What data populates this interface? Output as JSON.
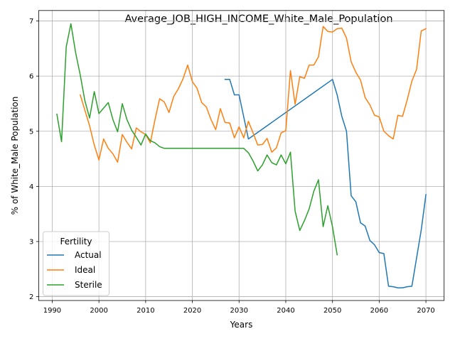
{
  "chart_data": {
    "type": "line",
    "title": "Average_JOB_HIGH_INCOME_White_Male_Population",
    "xlabel": "Years",
    "ylabel": "% of White_Male Population",
    "xlim": [
      1987.1,
      2073.9
    ],
    "ylim": [
      1.93,
      7.19
    ],
    "xticks": [
      1990,
      2000,
      2010,
      2020,
      2030,
      2040,
      2050,
      2060,
      2070
    ],
    "yticks": [
      2,
      3,
      4,
      5,
      6,
      7
    ],
    "grid": true,
    "legend": {
      "title": "Fertility",
      "placement": "lower-left"
    },
    "series": [
      {
        "name": "Actual",
        "color": "#1f77b4",
        "points": [
          [
            2027,
            5.94
          ],
          [
            2028,
            5.94
          ],
          [
            2029,
            5.66
          ],
          [
            2030,
            5.66
          ],
          [
            2032,
            4.86
          ],
          [
            2050,
            5.94
          ],
          [
            2051,
            5.66
          ],
          [
            2052,
            5.27
          ],
          [
            2053,
            5.0
          ],
          [
            2054,
            3.83
          ],
          [
            2055,
            3.72
          ],
          [
            2056,
            3.34
          ],
          [
            2057,
            3.28
          ],
          [
            2058,
            3.02
          ],
          [
            2059,
            2.94
          ],
          [
            2060,
            2.8
          ],
          [
            2061,
            2.78
          ],
          [
            2062,
            2.19
          ],
          [
            2063,
            2.18
          ],
          [
            2064,
            2.16
          ],
          [
            2065,
            2.16
          ],
          [
            2066,
            2.18
          ],
          [
            2067,
            2.19
          ],
          [
            2068,
            2.7
          ],
          [
            2069,
            3.21
          ],
          [
            2070,
            3.85
          ]
        ]
      },
      {
        "name": "Ideal",
        "color": "#ff7f0e",
        "points": [
          [
            1996,
            5.66
          ],
          [
            1997,
            5.38
          ],
          [
            1998,
            5.1
          ],
          [
            1999,
            4.75
          ],
          [
            2000,
            4.48
          ],
          [
            2001,
            4.86
          ],
          [
            2002,
            4.69
          ],
          [
            2003,
            4.59
          ],
          [
            2004,
            4.44
          ],
          [
            2005,
            4.94
          ],
          [
            2006,
            4.8
          ],
          [
            2007,
            4.68
          ],
          [
            2008,
            5.06
          ],
          [
            2009,
            4.99
          ],
          [
            2010,
            4.94
          ],
          [
            2011,
            4.79
          ],
          [
            2012,
            5.21
          ],
          [
            2013,
            5.59
          ],
          [
            2014,
            5.53
          ],
          [
            2015,
            5.34
          ],
          [
            2016,
            5.63
          ],
          [
            2017,
            5.77
          ],
          [
            2018,
            5.95
          ],
          [
            2019,
            6.2
          ],
          [
            2020,
            5.9
          ],
          [
            2021,
            5.78
          ],
          [
            2022,
            5.52
          ],
          [
            2023,
            5.44
          ],
          [
            2024,
            5.21
          ],
          [
            2025,
            5.03
          ],
          [
            2026,
            5.41
          ],
          [
            2027,
            5.16
          ],
          [
            2028,
            5.15
          ],
          [
            2029,
            4.88
          ],
          [
            2030,
            5.08
          ],
          [
            2031,
            4.88
          ],
          [
            2032,
            5.18
          ],
          [
            2033,
            4.97
          ],
          [
            2034,
            4.75
          ],
          [
            2035,
            4.76
          ],
          [
            2036,
            4.87
          ],
          [
            2037,
            4.62
          ],
          [
            2038,
            4.7
          ],
          [
            2039,
            4.97
          ],
          [
            2040,
            5.01
          ],
          [
            2041,
            6.1
          ],
          [
            2042,
            5.49
          ],
          [
            2043,
            5.99
          ],
          [
            2044,
            5.96
          ],
          [
            2045,
            6.2
          ],
          [
            2046,
            6.2
          ],
          [
            2047,
            6.35
          ],
          [
            2048,
            6.9
          ],
          [
            2049,
            6.81
          ],
          [
            2050,
            6.8
          ],
          [
            2051,
            6.86
          ],
          [
            2052,
            6.87
          ],
          [
            2053,
            6.69
          ],
          [
            2054,
            6.26
          ],
          [
            2055,
            6.07
          ],
          [
            2056,
            5.93
          ],
          [
            2057,
            5.61
          ],
          [
            2058,
            5.48
          ],
          [
            2059,
            5.29
          ],
          [
            2060,
            5.26
          ],
          [
            2061,
            5.0
          ],
          [
            2062,
            4.92
          ],
          [
            2063,
            4.86
          ],
          [
            2064,
            5.29
          ],
          [
            2065,
            5.27
          ],
          [
            2066,
            5.57
          ],
          [
            2067,
            5.91
          ],
          [
            2068,
            6.12
          ],
          [
            2069,
            6.82
          ],
          [
            2070,
            6.86
          ]
        ]
      },
      {
        "name": "Sterile",
        "color": "#2ca02c",
        "points": [
          [
            1991,
            5.31
          ],
          [
            1992,
            4.81
          ],
          [
            1993,
            6.53
          ],
          [
            1994,
            6.95
          ],
          [
            1995,
            6.43
          ],
          [
            1996,
            6.02
          ],
          [
            1997,
            5.55
          ],
          [
            1998,
            5.24
          ],
          [
            1999,
            5.72
          ],
          [
            2000,
            5.32
          ],
          [
            2001,
            5.42
          ],
          [
            2002,
            5.52
          ],
          [
            2003,
            5.21
          ],
          [
            2004,
            4.99
          ],
          [
            2005,
            5.5
          ],
          [
            2006,
            5.21
          ],
          [
            2007,
            5.02
          ],
          [
            2008,
            4.89
          ],
          [
            2009,
            4.75
          ],
          [
            2010,
            4.95
          ],
          [
            2011,
            4.83
          ],
          [
            2012,
            4.79
          ],
          [
            2013,
            4.72
          ],
          [
            2014,
            4.69
          ],
          [
            2015,
            4.69
          ],
          [
            2016,
            4.69
          ],
          [
            2017,
            4.69
          ],
          [
            2018,
            4.69
          ],
          [
            2019,
            4.69
          ],
          [
            2020,
            4.69
          ],
          [
            2021,
            4.69
          ],
          [
            2022,
            4.69
          ],
          [
            2023,
            4.69
          ],
          [
            2024,
            4.69
          ],
          [
            2025,
            4.69
          ],
          [
            2026,
            4.69
          ],
          [
            2027,
            4.69
          ],
          [
            2028,
            4.69
          ],
          [
            2029,
            4.69
          ],
          [
            2030,
            4.69
          ],
          [
            2031,
            4.69
          ],
          [
            2032,
            4.61
          ],
          [
            2033,
            4.46
          ],
          [
            2034,
            4.28
          ],
          [
            2035,
            4.39
          ],
          [
            2036,
            4.57
          ],
          [
            2037,
            4.43
          ],
          [
            2038,
            4.39
          ],
          [
            2039,
            4.57
          ],
          [
            2040,
            4.41
          ],
          [
            2041,
            4.62
          ],
          [
            2042,
            3.55
          ],
          [
            2043,
            3.2
          ],
          [
            2044,
            3.38
          ],
          [
            2045,
            3.59
          ],
          [
            2046,
            3.91
          ],
          [
            2047,
            4.12
          ],
          [
            2048,
            3.27
          ],
          [
            2049,
            3.65
          ],
          [
            2050,
            3.27
          ],
          [
            2051,
            2.76
          ]
        ]
      }
    ]
  }
}
